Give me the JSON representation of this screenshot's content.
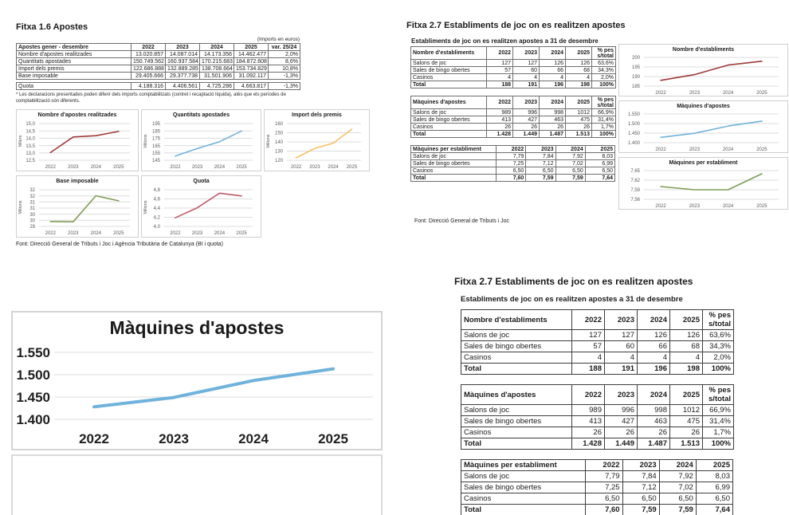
{
  "fitxa16": {
    "title": "Fitxa 1.6 Apostes",
    "imports_label": "(Imports en euros)",
    "table": {
      "header": [
        "Apostes gener - desembre",
        "2022",
        "2023",
        "2024",
        "2025",
        "var. 25/24"
      ],
      "rows": [
        [
          "Nombre d'apostes realitzades",
          "13.020.857",
          "14.087.014",
          "14.173.356",
          "14.462.477",
          "2,0%"
        ],
        [
          "Quantitats apostades",
          "150.749.562",
          "160.937.584",
          "170.215.683",
          "184.872.608",
          "8,6%"
        ],
        [
          "Import dels premis",
          "122.686.888",
          "132.889.285",
          "138.708.664",
          "153.734.829",
          "10,8%"
        ],
        [
          "Base imposable",
          "29.405.666",
          "29.377.738",
          "31.501.906",
          "31.092.117",
          "-1,3%"
        ]
      ],
      "rows2": [
        [
          "Quota",
          "4.188.316",
          "4.406.561",
          "4.725.286",
          "4.663.817",
          "-1,3%"
        ]
      ]
    },
    "footnote": "* Les declaracions presentades poden diferir dels imports comptabilitzats (contret i recaptació líquida), atès que els períodes de comptabilització són diferents.",
    "source": "Font: Direcció General de Tributs i Joc i Agència Tributària de Catalunya (BI i quota)"
  },
  "fitxa27": {
    "title": "Fitxa 2.7 Establiments de joc on es realitzen apostes",
    "subtitle": "Establiments de joc on es realitzen apostes a 31 de desembre",
    "source": "Font: Direcció General de Tributs i Joc",
    "tables": {
      "establiments": {
        "header": [
          "Nombre d'establiments",
          "2022",
          "2023",
          "2024",
          "2025",
          "% pes\ns/total"
        ],
        "rows": [
          [
            "Salons de joc",
            "127",
            "127",
            "126",
            "126",
            "63,6%"
          ],
          [
            "Sales de bingo obertes",
            "57",
            "60",
            "66",
            "68",
            "34,3%"
          ],
          [
            "Casinos",
            "4",
            "4",
            "4",
            "4",
            "2,0%"
          ],
          [
            "Total",
            "188",
            "191",
            "196",
            "198",
            "100%"
          ]
        ]
      },
      "maquines": {
        "header": [
          "Màquines d'apostes",
          "2022",
          "2023",
          "2024",
          "2025",
          "% pes\ns/total"
        ],
        "rows": [
          [
            "Salons de joc",
            "989",
            "996",
            "998",
            "1012",
            "66,9%"
          ],
          [
            "Sales de bingo obertes",
            "413",
            "427",
            "463",
            "475",
            "31,4%"
          ],
          [
            "Casinos",
            "26",
            "26",
            "26",
            "26",
            "1,7%"
          ],
          [
            "Total",
            "1.428",
            "1.449",
            "1.487",
            "1.513",
            "100%"
          ]
        ]
      },
      "maquines_per_establiment": {
        "header": [
          "Màquines per establiment",
          "2022",
          "2023",
          "2024",
          "2025"
        ],
        "rows": [
          [
            "Salons de joc",
            "7,79",
            "7,84",
            "7,92",
            "8,03"
          ],
          [
            "Sales de bingo obertes",
            "7,25",
            "7,12",
            "7,02",
            "6,99"
          ],
          [
            "Casinos",
            "6,50",
            "6,50",
            "6,50",
            "6,50"
          ],
          [
            "Total",
            "7,60",
            "7,59",
            "7,59",
            "7,64"
          ]
        ]
      }
    }
  },
  "chart_data": [
    {
      "id": "fitxa16_nombre_apostes",
      "type": "line",
      "title": "Nombre d'apostes realitzades",
      "ylabel": "Milers",
      "categories": [
        "2022",
        "2023",
        "2024",
        "2025"
      ],
      "values": [
        13.021,
        14.087,
        14.173,
        14.462
      ],
      "ylim": [
        12.5,
        15.0
      ],
      "yticks": [
        12.5,
        13.0,
        13.5,
        14.0,
        14.5,
        15.0
      ],
      "ytick_labels": [
        "12,5",
        "13,0",
        "13,5",
        "14,0",
        "14,5",
        "15,0"
      ],
      "color": "#9E3B38",
      "grid": true,
      "legend": "none"
    },
    {
      "id": "fitxa16_quantitats",
      "type": "line",
      "title": "Quantitats apostades",
      "ylabel": "Milions",
      "categories": [
        "2022",
        "2023",
        "2024",
        "2025"
      ],
      "values": [
        150.75,
        160.94,
        170.22,
        184.87
      ],
      "ylim": [
        145,
        195
      ],
      "yticks": [
        145,
        155,
        165,
        175,
        185,
        195
      ],
      "ytick_labels": [
        "145",
        "155",
        "165",
        "175",
        "185",
        "195"
      ],
      "color": "#6FB2DC",
      "grid": true,
      "legend": "none"
    },
    {
      "id": "fitxa16_premis",
      "type": "line",
      "title": "Import dels premis",
      "ylabel": "Milions",
      "categories": [
        "2022",
        "2023",
        "2024",
        "2025"
      ],
      "values": [
        122.69,
        132.89,
        138.71,
        153.73
      ],
      "ylim": [
        120,
        160
      ],
      "yticks": [
        120,
        130,
        140,
        150,
        160
      ],
      "ytick_labels": [
        "120",
        "130",
        "140",
        "150",
        "160"
      ],
      "color": "#F7C168",
      "grid": true,
      "legend": "none"
    },
    {
      "id": "fitxa16_base",
      "type": "line",
      "title": "Base imposable",
      "ylabel": "Milions",
      "categories": [
        "2022",
        "2023",
        "2024",
        "2025"
      ],
      "values": [
        29.406,
        29.378,
        31.502,
        31.092
      ],
      "ylim": [
        29,
        32
      ],
      "yticks": [
        29,
        29.5,
        30,
        30.5,
        31,
        31.5,
        32
      ],
      "ytick_labels": [
        "29",
        "30",
        "30",
        "31",
        "31",
        "32",
        "32"
      ],
      "color": "#7F9D55",
      "grid": true,
      "legend": "none"
    },
    {
      "id": "fitxa16_quota",
      "type": "line",
      "title": "Quota",
      "ylabel": "Milions",
      "categories": [
        "2022",
        "2023",
        "2024",
        "2025"
      ],
      "values": [
        4.188,
        4.407,
        4.725,
        4.664
      ],
      "ylim": [
        4.0,
        4.8
      ],
      "yticks": [
        4.0,
        4.2,
        4.4,
        4.6,
        4.8
      ],
      "ytick_labels": [
        "4,0",
        "4,2",
        "4,4",
        "4,6",
        "4,8"
      ],
      "color": "#C05A6A",
      "grid": true,
      "legend": "none"
    },
    {
      "id": "fitxa27_establiments",
      "type": "line",
      "title": "Nombre d'establiments",
      "categories": [
        "2022",
        "2023",
        "2024",
        "2025"
      ],
      "values": [
        188,
        191,
        196,
        198
      ],
      "ylim": [
        185,
        200
      ],
      "yticks": [
        185,
        190,
        195,
        200
      ],
      "ytick_labels": [
        "185",
        "190",
        "195",
        "200"
      ],
      "color": "#9E3B38",
      "grid": true,
      "legend": "none"
    },
    {
      "id": "fitxa27_maquines",
      "type": "line",
      "title": "Màquines d'apostes",
      "categories": [
        "2022",
        "2023",
        "2024",
        "2025"
      ],
      "values": [
        1428,
        1449,
        1487,
        1513
      ],
      "ylim": [
        1400,
        1550
      ],
      "yticks": [
        1400,
        1450,
        1500,
        1550
      ],
      "ytick_labels": [
        "1.400",
        "1.450",
        "1.500",
        "1.550"
      ],
      "color": "#6FB2DC",
      "grid": true,
      "legend": "none"
    },
    {
      "id": "fitxa27_maquines_per_establiment",
      "type": "line",
      "title": "Màquines per establiment",
      "categories": [
        "2022",
        "2023",
        "2024",
        "2025"
      ],
      "values": [
        7.6,
        7.59,
        7.59,
        7.64
      ],
      "ylim": [
        7.56,
        7.65
      ],
      "yticks": [
        7.56,
        7.59,
        7.62,
        7.65
      ],
      "ytick_labels": [
        "7,56",
        "7,59",
        "7,62",
        "7,65"
      ],
      "color": "#7F9D55",
      "grid": true,
      "legend": "none"
    },
    {
      "id": "big_maquines",
      "type": "line",
      "title": "Màquines d'apostes",
      "categories": [
        "2022",
        "2023",
        "2024",
        "2025"
      ],
      "values": [
        1428,
        1449,
        1487,
        1513
      ],
      "ylim": [
        1400,
        1550
      ],
      "yticks": [
        1400,
        1450,
        1500,
        1550
      ],
      "ytick_labels": [
        "1.400",
        "1.450",
        "1.500",
        "1.550"
      ],
      "color": "#6FB2DC",
      "grid": true,
      "legend": "none"
    }
  ]
}
